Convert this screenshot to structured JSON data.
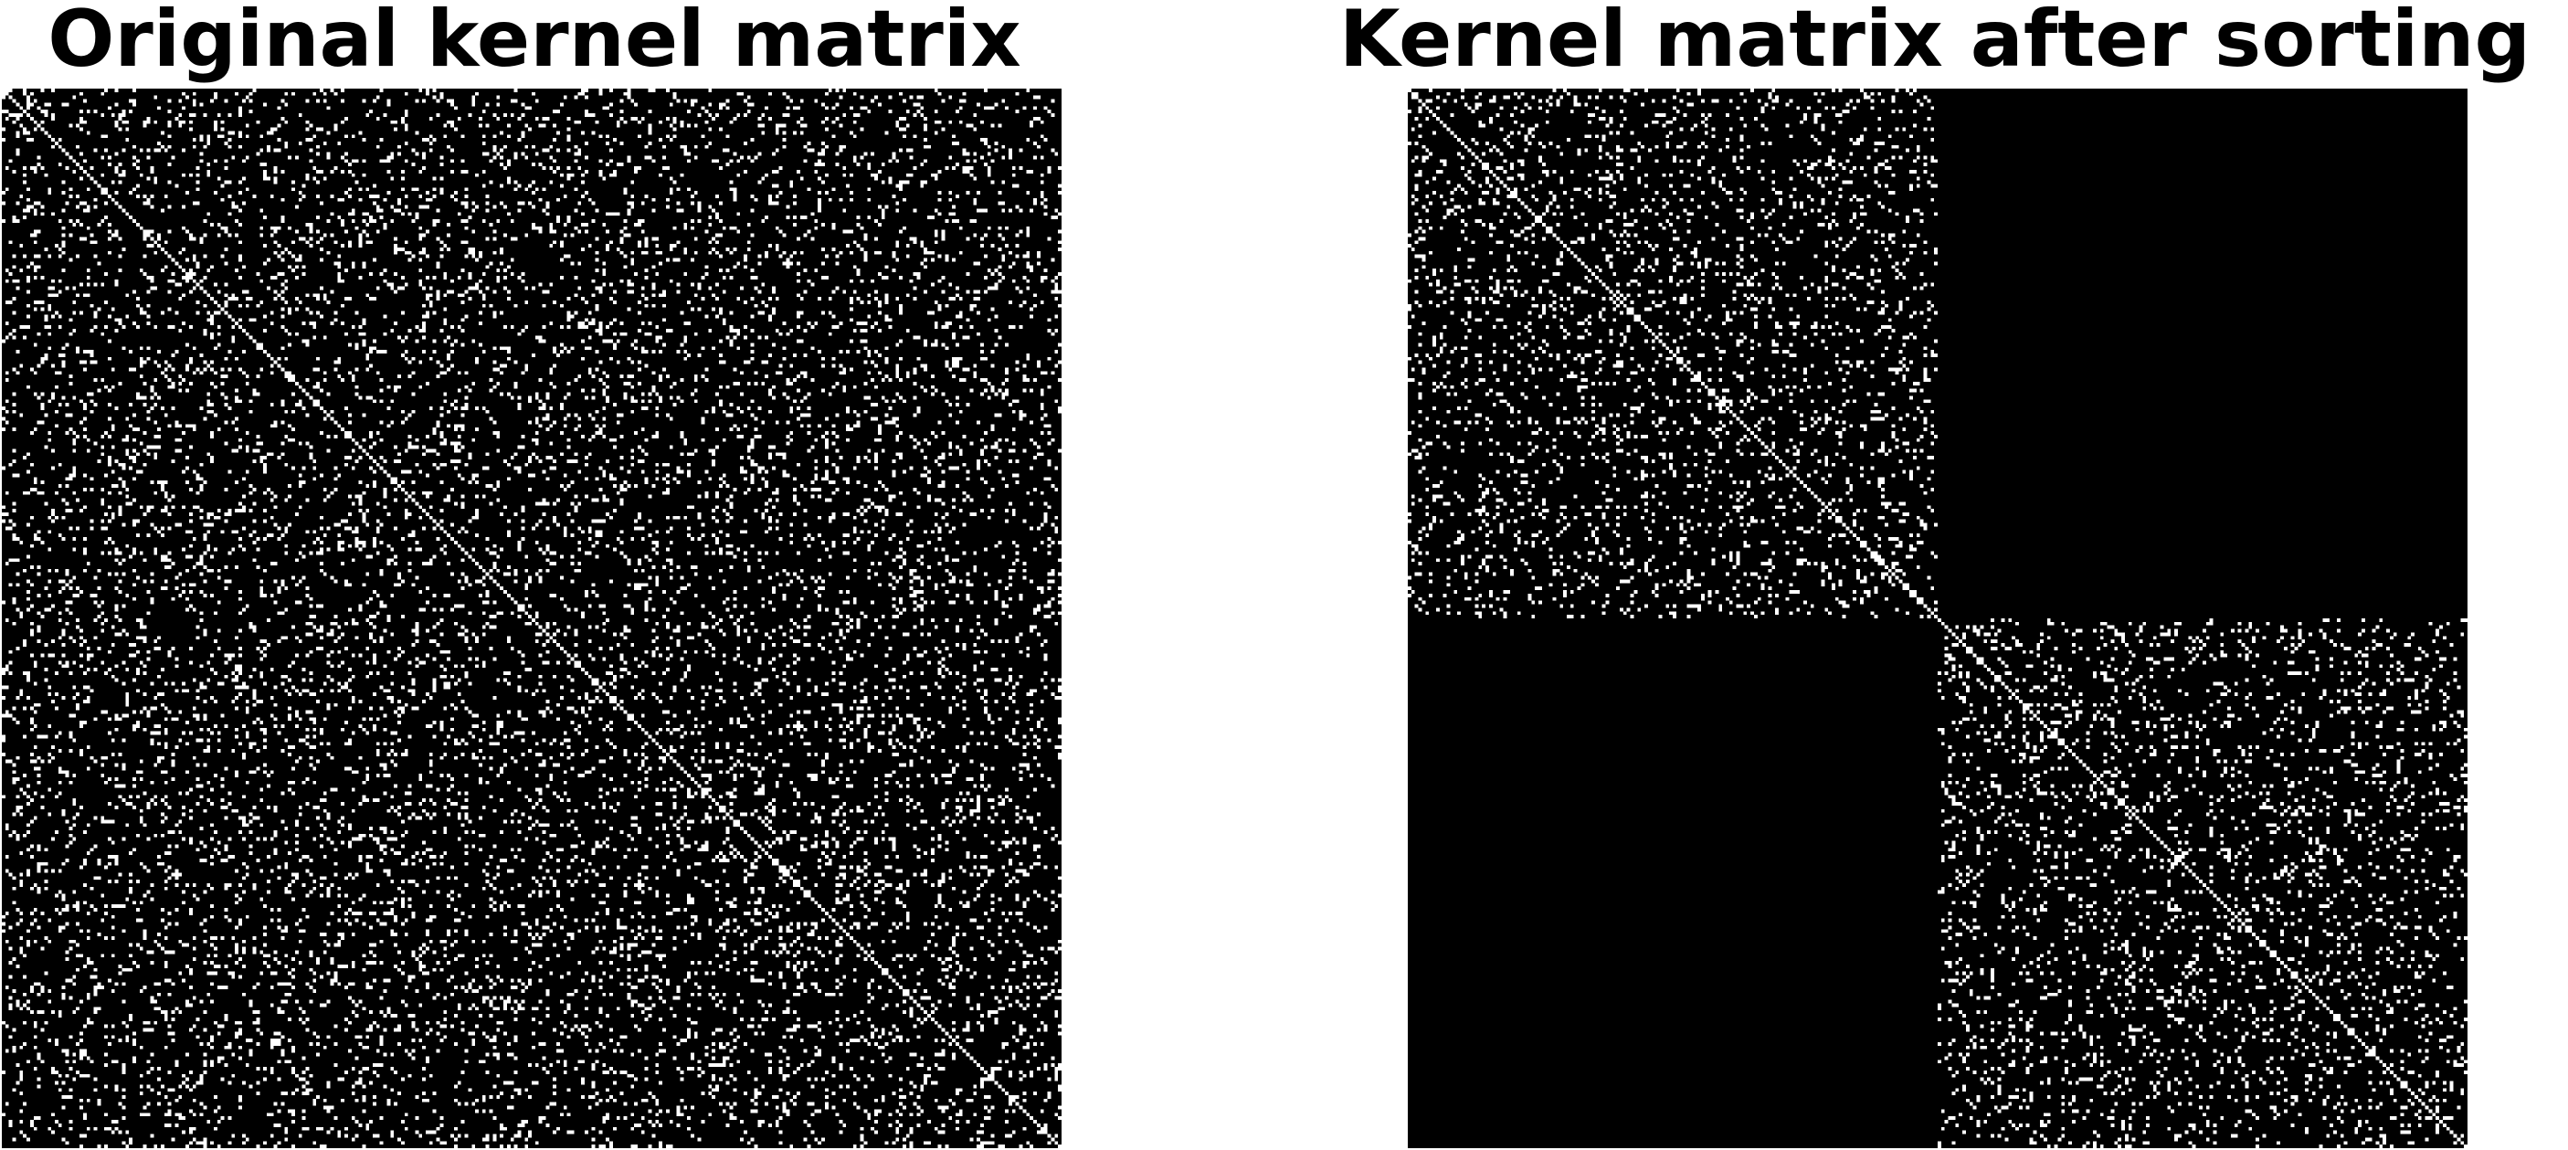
{
  "chart_data": [
    {
      "type": "heatmap",
      "title": "Original kernel matrix",
      "matrix_size": 300,
      "colormap": [
        "#000000",
        "#ffffff"
      ],
      "axes_visible": false,
      "pattern": "random sparse binary entries with a bright main diagonal",
      "diagonal_value": 1,
      "off_diagonal_density": 0.12,
      "blocks": []
    },
    {
      "type": "heatmap",
      "title": "Kernel matrix after sorting",
      "matrix_size": 300,
      "colormap": [
        "#000000",
        "#ffffff"
      ],
      "axes_visible": false,
      "pattern": "block diagonal: two dense clusters, zero off-diagonal blocks",
      "diagonal_value": 1,
      "off_diagonal_density": 0.12,
      "blocks": [
        {
          "start": 0,
          "end": 150
        },
        {
          "start": 150,
          "end": 300
        }
      ]
    }
  ]
}
